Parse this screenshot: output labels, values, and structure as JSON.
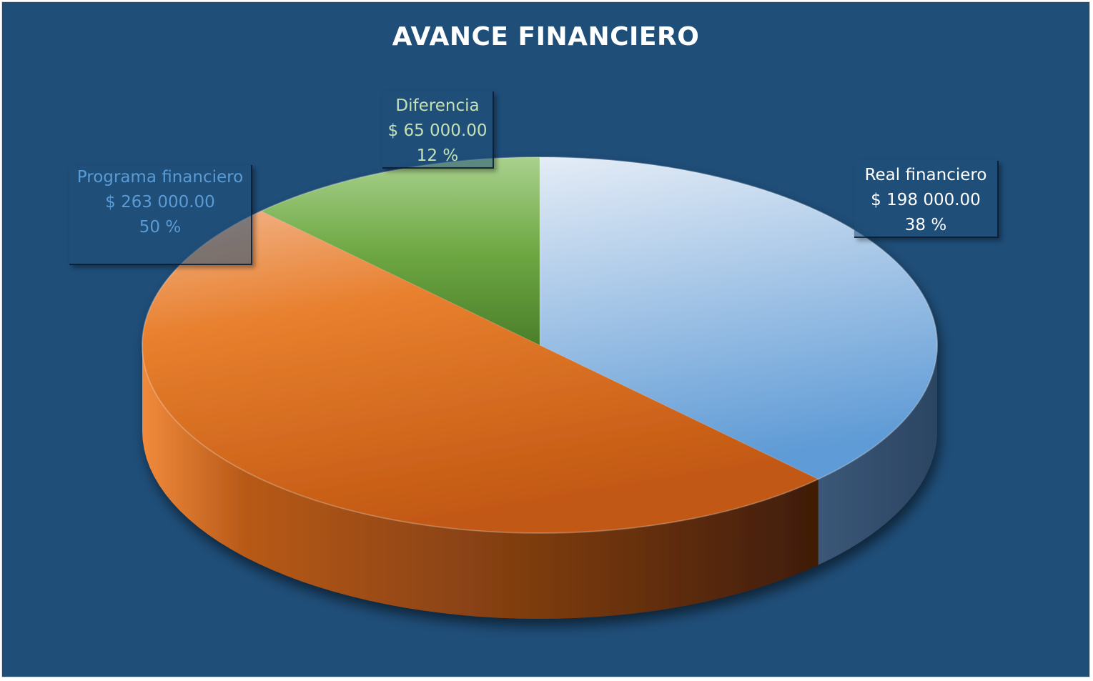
{
  "chart_data": {
    "type": "pie",
    "title": "AVANCE FINANCIERO",
    "slices": [
      {
        "name": "Real financiero",
        "value_label": "$ 198 000.00",
        "value": 198000,
        "percent_label": "38 %",
        "percent": 38,
        "color": "#6fa3d8",
        "label_color": "#ffffff"
      },
      {
        "name": "Programa financiero",
        "value_label": "$ 263 000.00",
        "value": 263000,
        "percent_label": "50 %",
        "percent": 50,
        "color": "#e8782c",
        "label_color": "#5b9bd5"
      },
      {
        "name": "Diferencia",
        "value_label": "$ 65 000.00",
        "value": 65000,
        "percent_label": "12 %",
        "percent": 12,
        "color": "#70ad47",
        "label_color": "#c5e0b4"
      }
    ],
    "background_color": "#1f4e79"
  }
}
